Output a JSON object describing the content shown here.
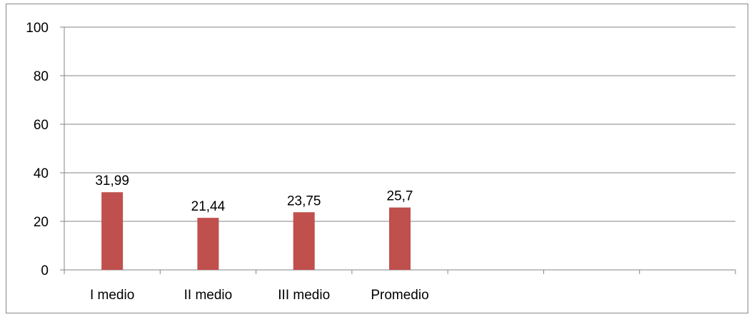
{
  "chart_data": {
    "type": "bar",
    "categories": [
      "I medio",
      "II medio",
      "III medio",
      "Promedio",
      "",
      "",
      ""
    ],
    "values": [
      31.99,
      21.44,
      23.75,
      25.7,
      null,
      null,
      null
    ],
    "data_labels": [
      "31,99",
      "21,44",
      "23,75",
      "25,7",
      "",
      "",
      ""
    ],
    "ylim": [
      0,
      100
    ],
    "yticks": [
      0,
      20,
      40,
      60,
      80,
      100
    ],
    "ytick_labels": [
      "0",
      "20",
      "40",
      "60",
      "80",
      "100"
    ],
    "grid": true,
    "legend": "none",
    "title": "",
    "xlabel": "",
    "ylabel": "",
    "colors": {
      "bar": "#c0504d",
      "grid": "#868686",
      "axis": "#868686",
      "frame": "#888888"
    }
  }
}
